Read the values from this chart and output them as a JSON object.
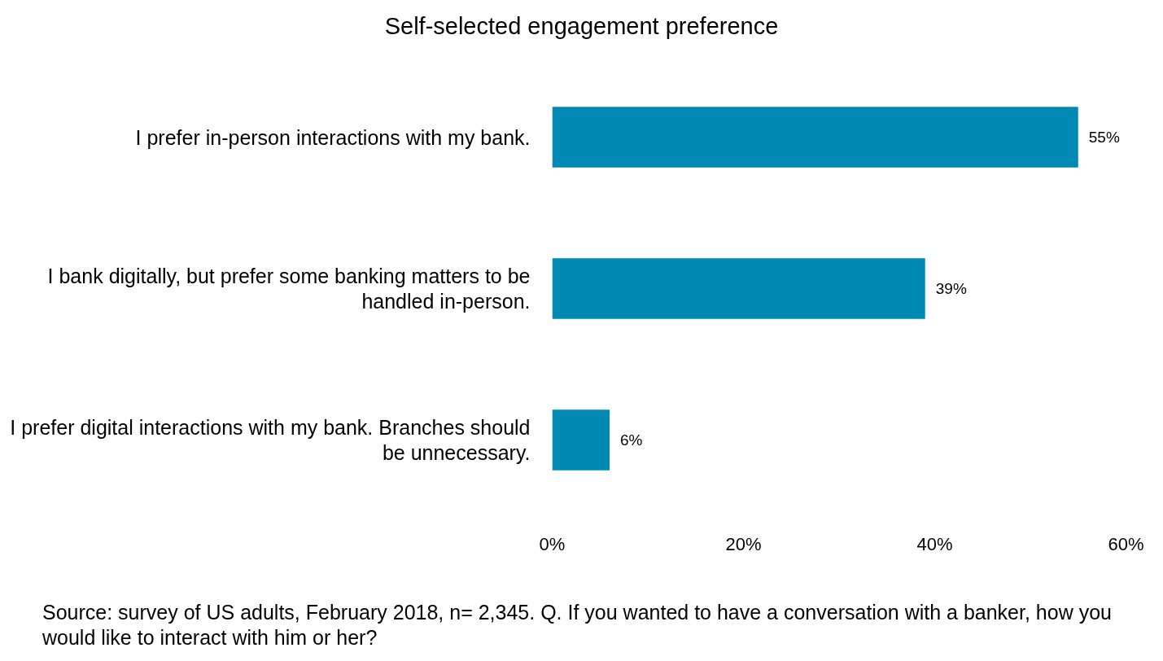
{
  "chart_data": {
    "type": "bar",
    "orientation": "horizontal",
    "title": "Self-selected engagement preference",
    "categories": [
      "I prefer in-person interactions with my bank.",
      "I bank digitally, but prefer some banking matters to be handled in-person.",
      "I prefer digital interactions with my bank. Branches should be unnecessary."
    ],
    "values": [
      55,
      39,
      6
    ],
    "color": "#0089b3",
    "value_labels": [
      "55%",
      "39%",
      "6%"
    ],
    "xlim": [
      0,
      60
    ],
    "xticks": [
      {
        "value": 0,
        "label": "0%"
      },
      {
        "value": 20,
        "label": "20%"
      },
      {
        "value": 40,
        "label": "40%"
      },
      {
        "value": 60,
        "label": "60%"
      }
    ],
    "annotations": [
      "Source: survey of US adults, February 2018, n= 2,345. Q. If you wanted to have a conversation with a banker, how you would like to interact with him or her?"
    ]
  }
}
